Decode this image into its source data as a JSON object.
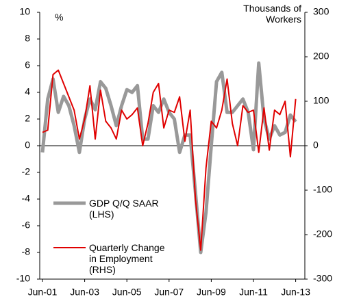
{
  "chart_data": {
    "type": "line",
    "ylabel": "%",
    "y2label": "Thousands of Workers",
    "categories": [
      "Jun-01",
      null,
      null,
      null,
      null,
      null,
      null,
      null,
      "Jun-03",
      null,
      null,
      null,
      null,
      null,
      null,
      null,
      "Jun-05",
      null,
      null,
      null,
      null,
      null,
      null,
      null,
      "Jun-07",
      null,
      null,
      null,
      null,
      null,
      null,
      null,
      "Jun-09",
      null,
      null,
      null,
      null,
      null,
      null,
      null,
      "Jun-11",
      null,
      null,
      null,
      null,
      null,
      null,
      null,
      "Jun-13"
    ],
    "series": [
      {
        "name": "GDP Q/Q SAAR (LHS)",
        "color": "#999999",
        "axis": "y",
        "values": [
          -0.5,
          3.5,
          5.0,
          2.5,
          3.7,
          3.0,
          1.5,
          -0.5,
          2.0,
          3.5,
          2.7,
          4.8,
          4.3,
          3.0,
          1.5,
          3.0,
          4.2,
          4.0,
          4.5,
          0.5,
          0.5,
          3.0,
          2.5,
          3.5,
          2.5,
          2.0,
          -0.5,
          0.8,
          0.8,
          -3.5,
          -8.0,
          -5.0,
          0.0,
          4.8,
          5.5,
          2.5,
          2.5,
          3.0,
          3.5,
          2.5,
          -0.3,
          6.2,
          2.0,
          0.5,
          1.5,
          0.8,
          1.0,
          2.3,
          1.8
        ]
      },
      {
        "name": "Quarterly Change in Employment (RHS)",
        "color": "#e00000",
        "axis": "y2",
        "values": [
          30,
          35,
          160,
          170,
          140,
          110,
          80,
          15,
          60,
          135,
          15,
          125,
          55,
          40,
          15,
          80,
          60,
          70,
          85,
          0,
          50,
          120,
          140,
          40,
          80,
          75,
          110,
          10,
          80,
          -120,
          -235,
          -50,
          55,
          40,
          80,
          150,
          50,
          0,
          90,
          75,
          80,
          -15,
          85,
          -10,
          80,
          70,
          100,
          -25,
          105
        ]
      }
    ],
    "ylim": [
      -10,
      10
    ],
    "yticks": [
      -10,
      -8,
      -6,
      -4,
      -2,
      0,
      2,
      4,
      6,
      8,
      10
    ],
    "y2lim": [
      -300,
      300
    ],
    "y2ticks": [
      -300,
      -200,
      -100,
      0,
      100,
      200,
      300
    ],
    "legend": "left"
  }
}
